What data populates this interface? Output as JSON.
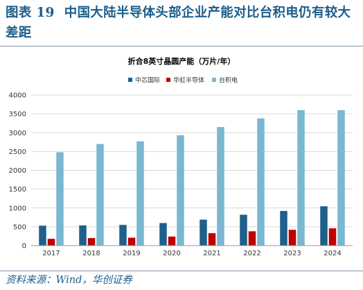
{
  "figure": {
    "number": "图表 19",
    "title": "中国大陆半导体头部企业产能对比台积电仍有较大差距"
  },
  "source": "资料来源：Wind，华创证券",
  "colors": {
    "heading": "#1b5e8c",
    "rule": "#7e94aa",
    "gridline": "#d9d9d9",
    "axis": "#999999"
  },
  "chart_data": {
    "type": "bar",
    "title": "折合8英寸晶圆产能（万片/年）",
    "xlabel": "",
    "ylabel": "",
    "categories": [
      "2017",
      "2018",
      "2019",
      "2020",
      "2021",
      "2022",
      "2023",
      "2024"
    ],
    "ylim": [
      0,
      4000
    ],
    "yticks": [
      0,
      500,
      1000,
      1500,
      2000,
      2500,
      3000,
      3500,
      4000
    ],
    "grid": true,
    "legend_position": "top",
    "series": [
      {
        "name": "中芯国际",
        "color": "#1f5f8b",
        "values": [
          530,
          535,
          550,
          600,
          690,
          820,
          920,
          1045
        ]
      },
      {
        "name": "华虹半导体",
        "color": "#c00000",
        "values": [
          180,
          200,
          210,
          240,
          330,
          380,
          420,
          460
        ]
      },
      {
        "name": "台积电",
        "color": "#7ab7d1",
        "values": [
          2480,
          2700,
          2770,
          2930,
          3150,
          3380,
          3600,
          3600
        ]
      }
    ]
  }
}
